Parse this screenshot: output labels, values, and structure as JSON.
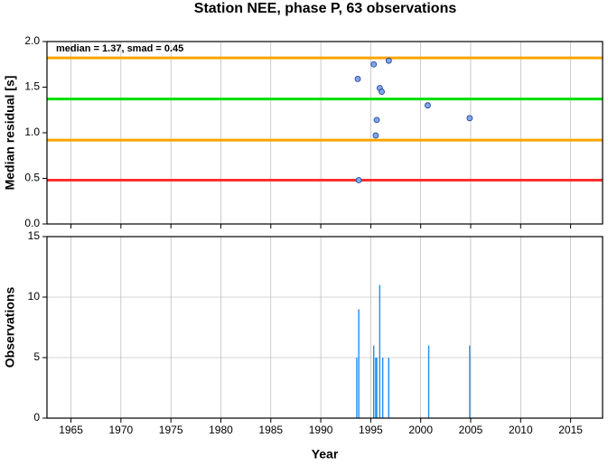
{
  "title": "Station NEE, phase P, 63 observations",
  "chart_data": [
    {
      "type": "scatter",
      "ylabel": "Median residual [s]",
      "annotation": "median = 1.37, smad = 0.45",
      "x": [
        1993.7,
        1995.3,
        1996.8,
        1995.9,
        1996.1,
        1995.6,
        1995.5,
        2000.7,
        2004.9,
        1993.8
      ],
      "values": [
        1.59,
        1.75,
        1.79,
        1.49,
        1.45,
        1.14,
        0.97,
        1.3,
        1.16,
        0.48
      ],
      "color": "#7fa6f0",
      "hlines": [
        {
          "value": 1.82,
          "color": "#ffa500"
        },
        {
          "value": 1.37,
          "color": "#00e000"
        },
        {
          "value": 0.92,
          "color": "#ffa500"
        },
        {
          "value": 0.48,
          "color": "#ff3030"
        }
      ],
      "xlim": [
        1962.6,
        2018.2
      ],
      "xticks": [
        1965,
        1970,
        1975,
        1980,
        1985,
        1990,
        1995,
        2000,
        2005,
        2010,
        2015
      ],
      "ylim": [
        0,
        2
      ],
      "yticks": [
        {
          "value": 0,
          "label": "0.0"
        },
        0.5,
        {
          "value": 1,
          "label": "1.0"
        },
        1.5,
        {
          "value": 2,
          "label": "2.0"
        }
      ],
      "xgrid": true,
      "ygrid": false
    },
    {
      "type": "bar",
      "xlabel": "Year",
      "ylabel": "Observations",
      "x": [
        1993.6,
        1993.8,
        1995.3,
        1995.5,
        1995.6,
        1995.9,
        1996.2,
        1996.8,
        2000.8,
        2004.9
      ],
      "values": [
        5,
        9,
        6,
        5,
        5,
        11,
        5,
        5,
        6,
        6
      ],
      "color": "#1e8ff0",
      "xlim": [
        1962.6,
        2018.2
      ],
      "xticks": [
        1965,
        1970,
        1975,
        1980,
        1985,
        1990,
        1995,
        2000,
        2005,
        2010,
        2015
      ],
      "ylim": [
        0,
        15
      ],
      "yticks": [
        0,
        5,
        10,
        15
      ],
      "xgrid": true,
      "ygrid": true
    }
  ]
}
